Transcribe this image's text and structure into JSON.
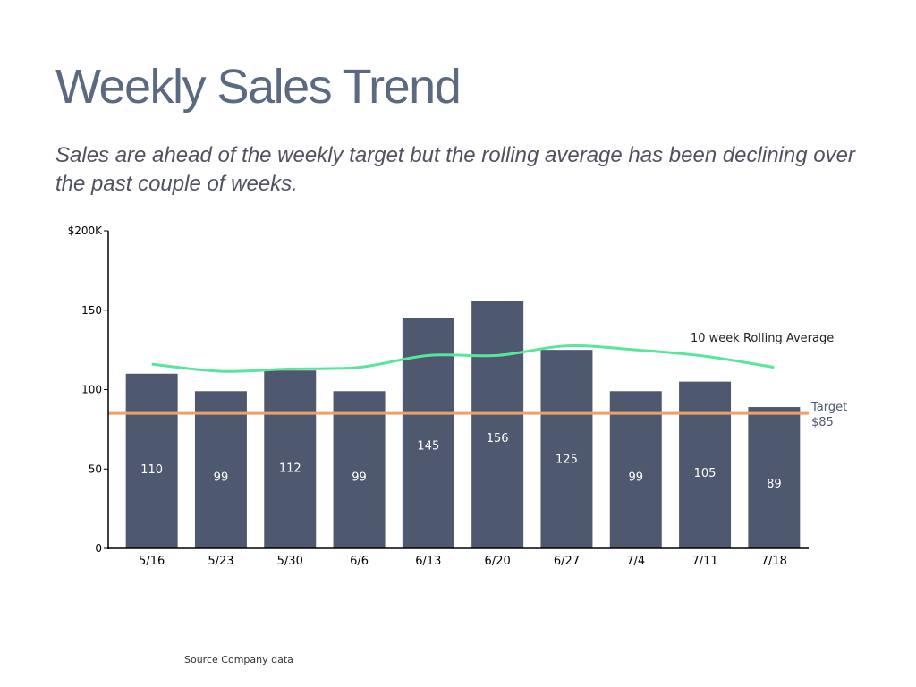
{
  "page": {
    "title": "Weekly Sales Trend",
    "subtitle": "Sales are ahead of the weekly target but the rolling average has been declining over the past couple of weeks.",
    "source": "Source Company data"
  },
  "colors": {
    "title": "#5b6a80",
    "subtitle": "#505262",
    "bar": "#4e586f",
    "bar_label": "#ffffff",
    "target": "#f0a067",
    "rolling": "#57e69b",
    "axis": "#000000",
    "target_label": "#4e586f"
  },
  "chart_data": {
    "type": "bar",
    "title": "",
    "xlabel": "",
    "ylabel": "",
    "ylim": [
      0,
      200
    ],
    "yticks": [
      {
        "value": 0,
        "label": "0"
      },
      {
        "value": 50,
        "label": "50"
      },
      {
        "value": 100,
        "label": "100"
      },
      {
        "value": 150,
        "label": "150"
      },
      {
        "value": 200,
        "label": "$200K"
      }
    ],
    "categories": [
      "5/16",
      "5/23",
      "5/30",
      "6/6",
      "6/13",
      "6/20",
      "6/27",
      "7/4",
      "7/11",
      "7/18"
    ],
    "values": [
      110,
      99,
      112,
      99,
      145,
      156,
      125,
      99,
      105,
      89
    ],
    "data_labels": [
      "110",
      "99",
      "112",
      "99",
      "145",
      "156",
      "125",
      "99",
      "105",
      "89"
    ],
    "rolling_average": {
      "name": "10 week Rolling Average",
      "values": [
        116,
        111.5,
        113,
        114,
        121.5,
        121.5,
        127.5,
        125,
        121,
        114
      ]
    },
    "target": {
      "value": 85,
      "label_line1": "Target",
      "label_line2": "$85"
    }
  }
}
